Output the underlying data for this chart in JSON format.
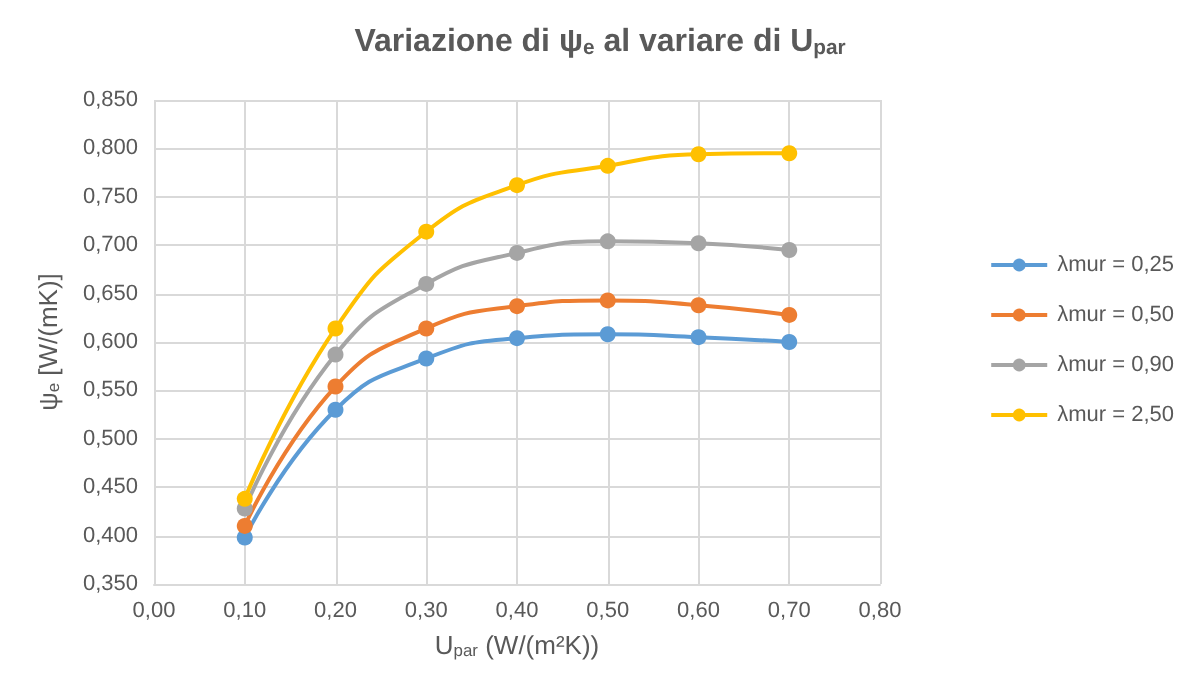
{
  "chart_data": {
    "type": "line",
    "title": "Variazione di ψ$_{e}$ al variare di U$_{par}$",
    "xlabel": "U$_{par}$ (W/(m²K))",
    "ylabel": "ψ$_{e}$ [W/(mK)]",
    "x": [
      0.1,
      0.2,
      0.3,
      0.4,
      0.5,
      0.6,
      0.7
    ],
    "series": [
      {
        "name": "λmur = 0,25",
        "color": "#5b9bd5",
        "values": [
          0.398,
          0.53,
          0.583,
          0.604,
          0.608,
          0.605,
          0.6
        ]
      },
      {
        "name": "λmur = 0,50",
        "color": "#ed7d31",
        "values": [
          0.41,
          0.554,
          0.614,
          0.637,
          0.643,
          0.638,
          0.628
        ]
      },
      {
        "name": "λmur = 0,90",
        "color": "#a5a5a5",
        "values": [
          0.428,
          0.587,
          0.66,
          0.692,
          0.704,
          0.702,
          0.695
        ]
      },
      {
        "name": "λmur = 2,50",
        "color": "#ffc000",
        "values": [
          0.438,
          0.614,
          0.714,
          0.762,
          0.782,
          0.794,
          0.795
        ]
      }
    ],
    "xlim": [
      0,
      0.8
    ],
    "xticks": [
      {
        "value": 0,
        "label": "0,00"
      },
      {
        "value": 0.1,
        "label": "0,10"
      },
      {
        "value": 0.2,
        "label": "0,20"
      },
      {
        "value": 0.3,
        "label": "0,30"
      },
      {
        "value": 0.4,
        "label": "0,40"
      },
      {
        "value": 0.5,
        "label": "0,50"
      },
      {
        "value": 0.6,
        "label": "0,60"
      },
      {
        "value": 0.7,
        "label": "0,70"
      },
      {
        "value": 0.8,
        "label": "0,80"
      }
    ],
    "ylim": [
      0.35,
      0.85
    ],
    "yticks": [
      {
        "value": 0.35,
        "label": "0,350"
      },
      {
        "value": 0.4,
        "label": "0,400"
      },
      {
        "value": 0.45,
        "label": "0,450"
      },
      {
        "value": 0.5,
        "label": "0,500"
      },
      {
        "value": 0.55,
        "label": "0,550"
      },
      {
        "value": 0.6,
        "label": "0,600"
      },
      {
        "value": 0.65,
        "label": "0,650"
      },
      {
        "value": 0.7,
        "label": "0,700"
      },
      {
        "value": 0.75,
        "label": "0,750"
      },
      {
        "value": 0.8,
        "label": "0,800"
      },
      {
        "value": 0.85,
        "label": "0,850"
      }
    ],
    "grid": true,
    "legend": "right",
    "marker": "circle",
    "line_style": "solid"
  }
}
